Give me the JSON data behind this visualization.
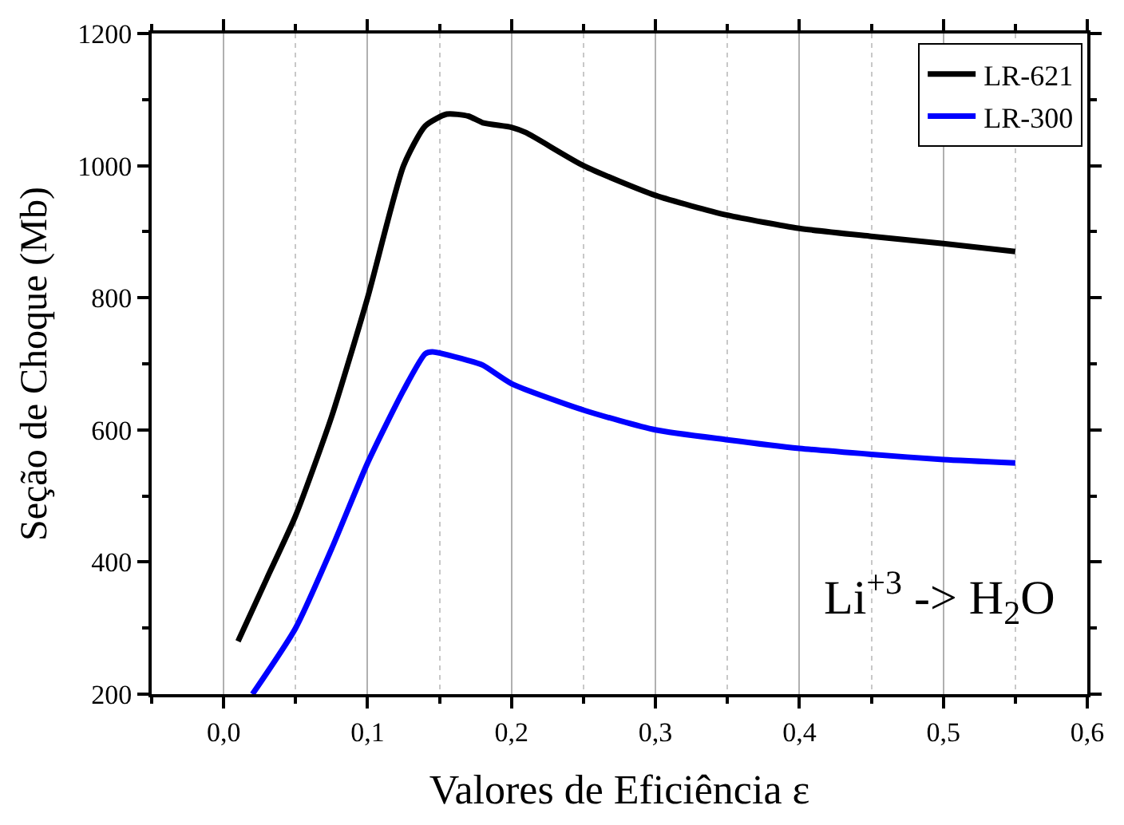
{
  "chart_data": {
    "type": "line",
    "xlabel": "Valores de Eficiência ε",
    "ylabel": "Seção de Choque (Mb)",
    "xlim": [
      -0.05,
      0.6
    ],
    "ylim": [
      200,
      1200
    ],
    "xticks": [
      {
        "value": 0,
        "label": "0,0"
      },
      {
        "value": 0.1,
        "label": "0,1"
      },
      {
        "value": 0.2,
        "label": "0,2"
      },
      {
        "value": 0.3,
        "label": "0,3"
      },
      {
        "value": 0.4,
        "label": "0,4"
      },
      {
        "value": 0.5,
        "label": "0,5"
      },
      {
        "value": 0.6,
        "label": "0,6"
      }
    ],
    "yticks": [
      200,
      400,
      600,
      800,
      1000,
      1200
    ],
    "grid": "x",
    "legend": "top right",
    "marker": "none",
    "line_style": "solid",
    "annotations": [
      {
        "text": "Li$^{+3}$ -> H$_{2}$O"
      }
    ],
    "series": [
      {
        "name": "LR-621",
        "color": "#000000",
        "x": [
          0.01,
          0.03,
          0.05,
          0.075,
          0.1,
          0.125,
          0.14,
          0.155,
          0.17,
          0.18,
          0.2,
          0.21,
          0.25,
          0.3,
          0.35,
          0.4,
          0.45,
          0.5,
          0.55
        ],
        "values": [
          280,
          375,
          470,
          620,
          800,
          1000,
          1060,
          1078,
          1075,
          1065,
          1058,
          1050,
          1000,
          955,
          925,
          905,
          893,
          882,
          870
        ]
      },
      {
        "name": "LR-300",
        "color": "#0000ff",
        "x": [
          0.02,
          0.05,
          0.075,
          0.1,
          0.125,
          0.14,
          0.145,
          0.17,
          0.18,
          0.2,
          0.25,
          0.3,
          0.35,
          0.4,
          0.45,
          0.5,
          0.55
        ],
        "values": [
          200,
          300,
          420,
          550,
          660,
          715,
          718,
          705,
          698,
          670,
          630,
          600,
          585,
          572,
          563,
          555,
          550
        ]
      }
    ]
  }
}
